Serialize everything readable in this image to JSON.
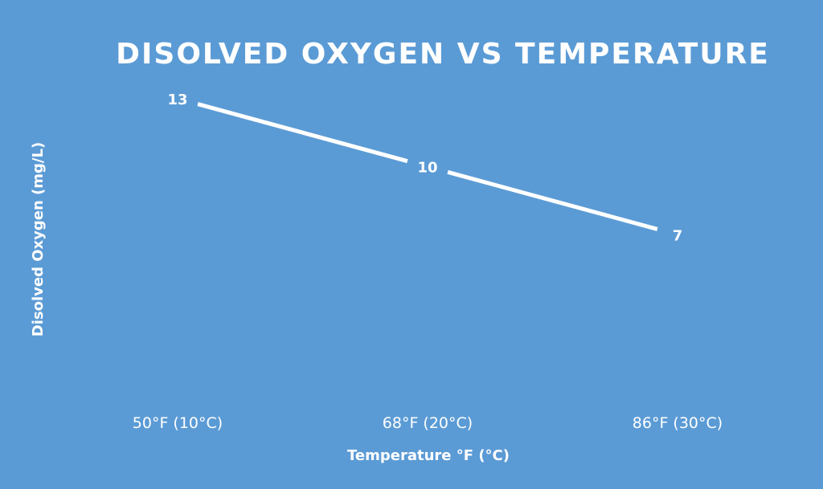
{
  "chart_data": {
    "type": "line",
    "title": "DISOLVED OXYGEN VS TEMPERATURE",
    "xlabel": "Temperature °F (°C)",
    "ylabel": "Disolved Oxygen (mg/L)",
    "categories": [
      "50°F (10°C)",
      "68°F (20°C)",
      "86°F (30°C)"
    ],
    "values": [
      13,
      10,
      7
    ],
    "data_labels": [
      "13",
      "10",
      "7"
    ],
    "ylim": [
      0,
      16
    ],
    "grid": false,
    "legend": "none",
    "drop_lines": true
  },
  "colors": {
    "background": "#5b9bd5",
    "series": "#ffffff",
    "drop_line": "#ffffff",
    "text": "#ffffff"
  }
}
